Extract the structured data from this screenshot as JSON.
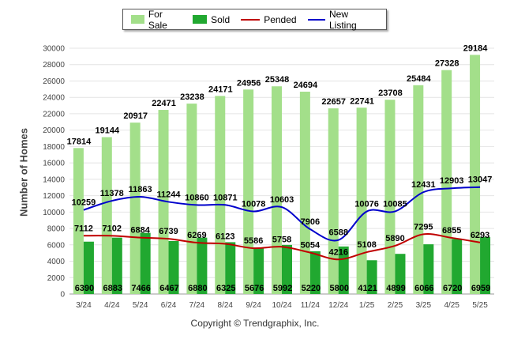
{
  "chart_data": {
    "type": "bar",
    "title": "",
    "xlabel": "",
    "ylabel": "Number of Homes",
    "ylim": [
      0,
      30000
    ],
    "yticks": [
      0,
      2000,
      4000,
      6000,
      8000,
      10000,
      12000,
      14000,
      16000,
      18000,
      20000,
      22000,
      24000,
      26000,
      28000,
      30000
    ],
    "grid": true,
    "legend_position": "top",
    "categories": [
      "3/24",
      "4/24",
      "5/24",
      "6/24",
      "7/24",
      "8/24",
      "9/24",
      "10/24",
      "11/24",
      "12/24",
      "1/25",
      "2/25",
      "3/25",
      "4/25",
      "5/25"
    ],
    "series": [
      {
        "name": "For Sale",
        "kind": "bar",
        "color": "#a3df8a",
        "values": [
          17814,
          19144,
          20917,
          22471,
          23238,
          24171,
          24956,
          25348,
          24694,
          22657,
          22741,
          23708,
          25484,
          27328,
          29184
        ]
      },
      {
        "name": "Sold",
        "kind": "bar",
        "color": "#21a830",
        "values": [
          6390,
          6883,
          7466,
          6467,
          6880,
          6325,
          5676,
          5992,
          5220,
          5800,
          4121,
          4899,
          6066,
          6720,
          6959
        ]
      },
      {
        "name": "Pended",
        "kind": "line",
        "color": "#c00000",
        "values": [
          7112,
          7102,
          6884,
          6739,
          6269,
          6123,
          5586,
          5758,
          5054,
          4216,
          5108,
          5890,
          7295,
          6855,
          6293
        ]
      },
      {
        "name": "New Listing",
        "kind": "line",
        "color": "#0000cc",
        "values": [
          10259,
          11378,
          11863,
          11244,
          10860,
          10871,
          10078,
          10603,
          7906,
          6588,
          10076,
          10085,
          12431,
          12903,
          13047
        ]
      }
    ]
  },
  "footer": {
    "copyright": "Copyright © Trendgraphix, Inc."
  }
}
